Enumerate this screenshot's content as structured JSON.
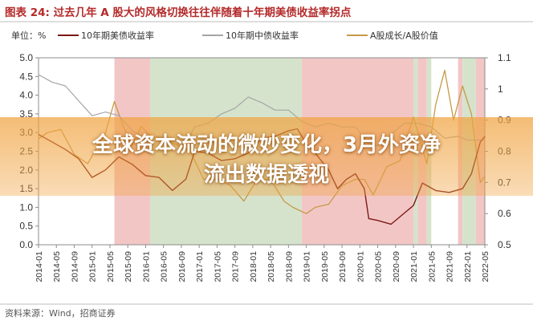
{
  "figure": {
    "title": "图表 24:  过去几年 A 股大的风格切换往往伴随着十年期美债收益率拐点",
    "unit_label": "单位：%",
    "source": "资料来源：Wind，招商证券"
  },
  "banner": {
    "line1": "全球资本流动的微妙变化，3月外资净",
    "line2": "流出数据透视"
  },
  "colors": {
    "us10y": "#7b1a14",
    "cn10y": "#a5a5a5",
    "growth_value": "#c59a46",
    "title": "#b52a2a",
    "band_red": "#f3c6c6",
    "band_green": "#d6e3cc",
    "banner": "#f0a340"
  },
  "chart_data": {
    "type": "line",
    "title": "过去几年 A 股大的风格切换往往伴随着十年期美债收益率拐点",
    "left_axis": {
      "label": "单位：%",
      "lim": [
        0,
        5.0
      ],
      "ticks": [
        "0.0",
        "0.5",
        "1.0",
        "1.5",
        "2.0",
        "2.5",
        "3.0",
        "3.5",
        "4.0",
        "4.5",
        "5.0"
      ]
    },
    "right_axis": {
      "lim": [
        0.5,
        1.1
      ],
      "ticks": [
        "0.5",
        "0.6",
        "0.7",
        "0.8",
        "0.9",
        "1",
        "1.1"
      ]
    },
    "x_ticks": [
      "2014-01",
      "2014-05",
      "2014-09",
      "2015-01",
      "2015-05",
      "2015-09",
      "2016-01",
      "2016-05",
      "2016-09",
      "2017-01",
      "2017-05",
      "2017-09",
      "2018-01",
      "2018-05",
      "2018-09",
      "2019-01",
      "2019-05",
      "2019-09",
      "2020-01",
      "2020-05",
      "2020-09",
      "2021-01",
      "2021-05",
      "2021-09",
      "2022-01",
      "2022-05"
    ],
    "x_range": [
      "2014-01",
      "2022-05"
    ],
    "legend": [
      "10年期美债收益率",
      "10年期中债收益率",
      "A股成长/A股价值"
    ],
    "shaded_periods": [
      {
        "start": "2015-06",
        "end": "2016-02",
        "color": "red"
      },
      {
        "start": "2016-02",
        "end": "2018-12",
        "color": "green"
      },
      {
        "start": "2018-12",
        "end": "2021-01",
        "color": "red"
      },
      {
        "start": "2021-01",
        "end": "2021-02",
        "color": "green"
      },
      {
        "start": "2021-02",
        "end": "2021-04",
        "color": "red"
      },
      {
        "start": "2021-04",
        "end": "2021-05",
        "color": "green"
      },
      {
        "start": "2021-11",
        "end": "2021-12",
        "color": "red"
      },
      {
        "start": "2021-12",
        "end": "2022-03",
        "color": "green"
      },
      {
        "start": "2022-03",
        "end": "2022-05",
        "color": "red"
      }
    ],
    "series": [
      {
        "name": "10年期美债收益率",
        "axis": "left",
        "x": [
          "2014-01",
          "2014-04",
          "2014-07",
          "2014-10",
          "2015-01",
          "2015-04",
          "2015-07",
          "2015-10",
          "2016-01",
          "2016-04",
          "2016-07",
          "2016-10",
          "2016-12",
          "2017-03",
          "2017-06",
          "2017-09",
          "2017-12",
          "2018-03",
          "2018-06",
          "2018-09",
          "2018-11",
          "2019-01",
          "2019-03",
          "2019-06",
          "2019-08",
          "2019-10",
          "2019-12",
          "2020-02",
          "2020-03",
          "2020-05",
          "2020-08",
          "2020-11",
          "2021-01",
          "2021-03",
          "2021-06",
          "2021-09",
          "2021-12",
          "2022-02",
          "2022-04",
          "2022-05"
        ],
        "values": [
          2.95,
          2.75,
          2.55,
          2.3,
          1.8,
          2.0,
          2.35,
          2.15,
          1.85,
          1.8,
          1.45,
          1.75,
          2.5,
          2.45,
          2.25,
          2.3,
          2.45,
          2.85,
          2.9,
          3.05,
          3.1,
          2.7,
          2.45,
          2.0,
          1.5,
          1.75,
          1.9,
          1.5,
          0.7,
          0.65,
          0.55,
          0.85,
          1.05,
          1.65,
          1.45,
          1.4,
          1.5,
          1.9,
          2.75,
          2.9
        ]
      },
      {
        "name": "10年期中债收益率",
        "axis": "left",
        "x": [
          "2014-01",
          "2014-04",
          "2014-07",
          "2014-10",
          "2015-01",
          "2015-04",
          "2015-07",
          "2015-10",
          "2016-01",
          "2016-04",
          "2016-07",
          "2016-10",
          "2016-12",
          "2017-03",
          "2017-06",
          "2017-09",
          "2017-12",
          "2018-03",
          "2018-06",
          "2018-09",
          "2018-12",
          "2019-03",
          "2019-06",
          "2019-09",
          "2019-12",
          "2020-03",
          "2020-05",
          "2020-08",
          "2020-11",
          "2021-02",
          "2021-05",
          "2021-08",
          "2021-11",
          "2022-01",
          "2022-03",
          "2022-05"
        ],
        "values": [
          4.55,
          4.35,
          4.25,
          3.85,
          3.45,
          3.55,
          3.45,
          3.05,
          2.85,
          2.9,
          2.8,
          2.7,
          3.15,
          3.25,
          3.5,
          3.65,
          3.95,
          3.8,
          3.6,
          3.6,
          3.3,
          3.15,
          3.25,
          3.15,
          3.15,
          2.7,
          2.65,
          2.95,
          3.25,
          3.25,
          3.15,
          2.85,
          2.9,
          2.8,
          2.8,
          2.8
        ]
      },
      {
        "name": "A股成长/A股价值",
        "axis": "right",
        "x": [
          "2014-01",
          "2014-03",
          "2014-06",
          "2014-09",
          "2014-12",
          "2015-02",
          "2015-04",
          "2015-06",
          "2015-08",
          "2015-10",
          "2015-12",
          "2016-02",
          "2016-05",
          "2016-08",
          "2016-11",
          "2017-02",
          "2017-05",
          "2017-08",
          "2017-11",
          "2018-02",
          "2018-05",
          "2018-08",
          "2018-10",
          "2019-01",
          "2019-03",
          "2019-06",
          "2019-09",
          "2019-12",
          "2020-02",
          "2020-04",
          "2020-07",
          "2020-10",
          "2021-01",
          "2021-02",
          "2021-04",
          "2021-06",
          "2021-08",
          "2021-10",
          "2021-12",
          "2022-02",
          "2022-04",
          "2022-05"
        ],
        "values": [
          0.84,
          0.86,
          0.87,
          0.79,
          0.76,
          0.81,
          0.86,
          0.96,
          0.88,
          0.82,
          0.88,
          0.85,
          0.84,
          0.82,
          0.8,
          0.71,
          0.71,
          0.69,
          0.64,
          0.71,
          0.71,
          0.64,
          0.62,
          0.6,
          0.62,
          0.63,
          0.69,
          0.71,
          0.71,
          0.66,
          0.75,
          0.77,
          0.91,
          0.86,
          0.76,
          0.95,
          1.06,
          0.9,
          1.01,
          0.92,
          0.7,
          0.72
        ]
      }
    ]
  }
}
